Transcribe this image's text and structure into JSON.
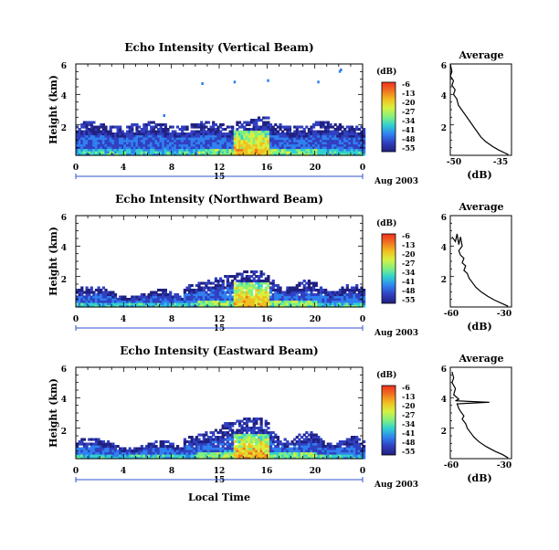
{
  "chart_data": {
    "type": "heatmap",
    "x_axis_label": "Local Time",
    "x_ticks": [
      "0",
      "4",
      "8",
      "12",
      "16",
      "20",
      "0"
    ],
    "xlim": [
      0,
      24
    ],
    "date_day": "15",
    "date_month": "Aug 2003",
    "y_axis_label": "Height (km)",
    "y_ticks": [
      "2",
      "4",
      "6"
    ],
    "ylim": [
      0,
      6
    ],
    "colorbar": {
      "unit": "(dB)",
      "ticks": [
        "-6",
        "-13",
        "-20",
        "-27",
        "-34",
        "-41",
        "-48",
        "-55"
      ],
      "colors": [
        "#f03020",
        "#f07020",
        "#f0c020",
        "#d8f040",
        "#80f080",
        "#30d0d0",
        "#3080f0",
        "#3040c0",
        "#202080"
      ]
    },
    "panels": [
      {
        "title": "Echo Intensity (Vertical Beam)",
        "profile": {
          "title": "Average",
          "xlabel": "(dB)",
          "x_ticks": [
            "-50",
            "-35"
          ],
          "xlim": [
            -52,
            -33
          ],
          "y_ticks": [
            "2",
            "4",
            "6"
          ],
          "points": [
            [
              -52,
              6.0
            ],
            [
              -51.5,
              5.5
            ],
            [
              -52,
              5.2
            ],
            [
              -51,
              4.9
            ],
            [
              -51.5,
              4.6
            ],
            [
              -50.5,
              4.3
            ],
            [
              -51,
              4.0
            ],
            [
              -50,
              3.7
            ],
            [
              -49.5,
              3.3
            ],
            [
              -48.5,
              3.0
            ],
            [
              -47.5,
              2.7
            ],
            [
              -46.5,
              2.4
            ],
            [
              -45.5,
              2.1
            ],
            [
              -44.5,
              1.8
            ],
            [
              -43.5,
              1.5
            ],
            [
              -42.5,
              1.2
            ],
            [
              -41,
              0.9
            ],
            [
              -39,
              0.6
            ],
            [
              -37,
              0.35
            ],
            [
              -35,
              0.15
            ],
            [
              -34,
              0.05
            ]
          ]
        }
      },
      {
        "title": "Echo Intensity (Northward Beam)",
        "profile": {
          "title": "Average",
          "xlabel": "(dB)",
          "x_ticks": [
            "-60",
            "-30"
          ],
          "xlim": [
            -63,
            -27
          ],
          "y_ticks": [
            "2",
            "4",
            "6"
          ],
          "points": [
            [
              -62,
              4.6
            ],
            [
              -60,
              4.3
            ],
            [
              -59,
              4.8
            ],
            [
              -58,
              4.1
            ],
            [
              -57,
              4.6
            ],
            [
              -56,
              4.0
            ],
            [
              -58,
              3.7
            ],
            [
              -57,
              3.4
            ],
            [
              -55,
              3.2
            ],
            [
              -56,
              2.9
            ],
            [
              -54,
              2.7
            ],
            [
              -55,
              2.4
            ],
            [
              -53,
              2.2
            ],
            [
              -52,
              1.9
            ],
            [
              -50,
              1.6
            ],
            [
              -48,
              1.3
            ],
            [
              -45,
              1.0
            ],
            [
              -41,
              0.7
            ],
            [
              -37,
              0.45
            ],
            [
              -32,
              0.2
            ],
            [
              -29,
              0.05
            ]
          ]
        }
      },
      {
        "title": "Echo Intensity (Eastward Beam)",
        "profile": {
          "title": "Average",
          "xlabel": "(dB)",
          "x_ticks": [
            "-60",
            "-30"
          ],
          "xlim": [
            -63,
            -27
          ],
          "y_ticks": [
            "2",
            "4",
            "6"
          ],
          "points": [
            [
              -62,
              5.7
            ],
            [
              -61,
              5.3
            ],
            [
              -62,
              5.0
            ],
            [
              -60,
              4.6
            ],
            [
              -61,
              4.2
            ],
            [
              -58,
              3.9
            ],
            [
              -60,
              3.8
            ],
            [
              -40,
              3.7
            ],
            [
              -59,
              3.6
            ],
            [
              -58,
              3.3
            ],
            [
              -57,
              3.1
            ],
            [
              -55,
              2.8
            ],
            [
              -56,
              2.6
            ],
            [
              -54,
              2.3
            ],
            [
              -53,
              2.0
            ],
            [
              -51,
              1.7
            ],
            [
              -49,
              1.4
            ],
            [
              -46,
              1.1
            ],
            [
              -42,
              0.8
            ],
            [
              -37,
              0.5
            ],
            [
              -32,
              0.25
            ],
            [
              -29,
              0.05
            ]
          ]
        }
      }
    ]
  }
}
